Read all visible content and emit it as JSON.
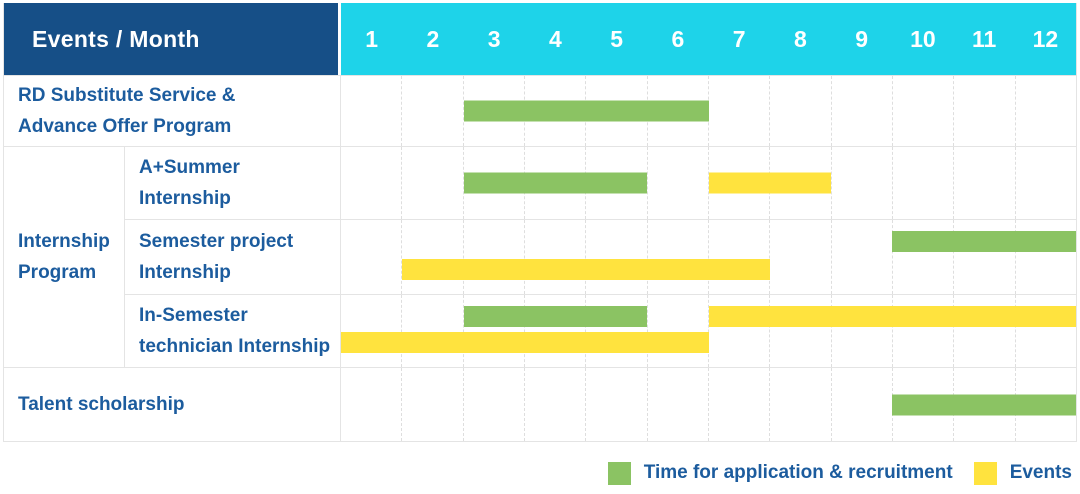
{
  "header": {
    "row_header": "Events / Month"
  },
  "chart_data": {
    "type": "bar",
    "subtype": "gantt",
    "title": "Events / Month schedule",
    "months": [
      "1",
      "2",
      "3",
      "4",
      "5",
      "6",
      "7",
      "8",
      "9",
      "10",
      "11",
      "12"
    ],
    "month_axis_range": [
      1,
      12
    ],
    "grid": "dashed-vertical-month-lines",
    "colors": {
      "recruitment_bar": "#8bc363",
      "event_bar": "#ffe33e",
      "header_bg": "#164f87",
      "months_header_bg": "#1ed3e9",
      "label_text": "#1c5c9e",
      "grid_border": "#e4e4e4"
    },
    "legend_position": "bottom-right",
    "legend": [
      {
        "kind": "recruitment",
        "label": "Time for application & recruitment"
      },
      {
        "kind": "event",
        "label": "Events"
      }
    ],
    "group_label": "Internship Program",
    "group_label_lines": [
      "Internship",
      "Program"
    ],
    "rows": [
      {
        "group": "",
        "label": "RD Substitute Service & Advance Offer Program",
        "label_lines": [
          "RD Substitute Service &",
          "Advance Offer Program"
        ],
        "bars": [
          {
            "kind": "recruitment",
            "start": 3,
            "end": 6,
            "lane": "middle"
          }
        ]
      },
      {
        "group": "Internship Program",
        "label": "A+Summer Internship",
        "label_lines": [
          "A+Summer",
          "Internship"
        ],
        "bars": [
          {
            "kind": "recruitment",
            "start": 3,
            "end": 5,
            "lane": "middle"
          },
          {
            "kind": "event",
            "start": 7,
            "end": 8,
            "lane": "middle"
          }
        ]
      },
      {
        "group": "Internship Program",
        "label": "Semester project Internship",
        "label_lines": [
          "Semester project",
          "Internship"
        ],
        "bars": [
          {
            "kind": "recruitment",
            "start": 10,
            "end": 12,
            "lane": "upper"
          },
          {
            "kind": "event",
            "start": 2,
            "end": 7,
            "lane": "lower"
          }
        ]
      },
      {
        "group": "Internship Program",
        "label": "In-Semester technician Internship",
        "label_lines": [
          "In-Semester",
          "technician Internship"
        ],
        "bars": [
          {
            "kind": "recruitment",
            "start": 3,
            "end": 5,
            "lane": "upper"
          },
          {
            "kind": "event",
            "start": 7,
            "end": 12,
            "lane": "upper"
          },
          {
            "kind": "event",
            "start": 1,
            "end": 6,
            "lane": "lower"
          }
        ]
      },
      {
        "group": "",
        "label": "Talent scholarship",
        "label_lines": [
          "Talent scholarship"
        ],
        "bars": [
          {
            "kind": "recruitment",
            "start": 10,
            "end": 12,
            "lane": "middle"
          }
        ]
      }
    ]
  }
}
